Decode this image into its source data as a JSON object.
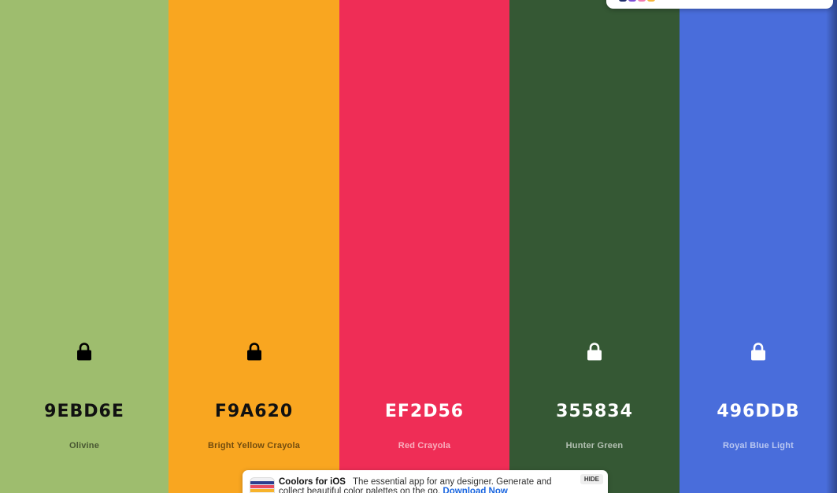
{
  "palette": {
    "colors": [
      {
        "hex": "9EBD6E",
        "name": "Olivine",
        "bg": "#9EBD6E",
        "text_theme": "dark",
        "lock_icon": "lock-icon",
        "locked": true
      },
      {
        "hex": "F9A620",
        "name": "Bright Yellow Crayola",
        "bg": "#F9A620",
        "text_theme": "dark",
        "lock_icon": "lock-icon",
        "locked": true
      },
      {
        "hex": "EF2D56",
        "name": "Red Crayola",
        "bg": "#EF2D56",
        "text_theme": "light",
        "lock_icon": "lock-icon",
        "locked": false
      },
      {
        "hex": "355834",
        "name": "Hunter Green",
        "bg": "#355834",
        "text_theme": "light",
        "lock_icon": "lock-icon",
        "locked": true
      },
      {
        "hex": "496DDB",
        "name": "Royal Blue Light",
        "bg": "#496DDB",
        "text_theme": "light",
        "lock_icon": "lock-icon",
        "locked": true
      }
    ]
  },
  "banner": {
    "title": "Coolors for iOS",
    "description": "The essential app for any designer. Generate and collect beautiful color palettes on the go.",
    "link": "Download Now",
    "hide_label": "HIDE",
    "icon": "coolors-app-icon"
  },
  "top_popup": {
    "icon": "color-dots-icon",
    "dot_colors": [
      "#1f2d6b",
      "#7b4fd6",
      "#f27bb0",
      "#f5b73b"
    ]
  }
}
